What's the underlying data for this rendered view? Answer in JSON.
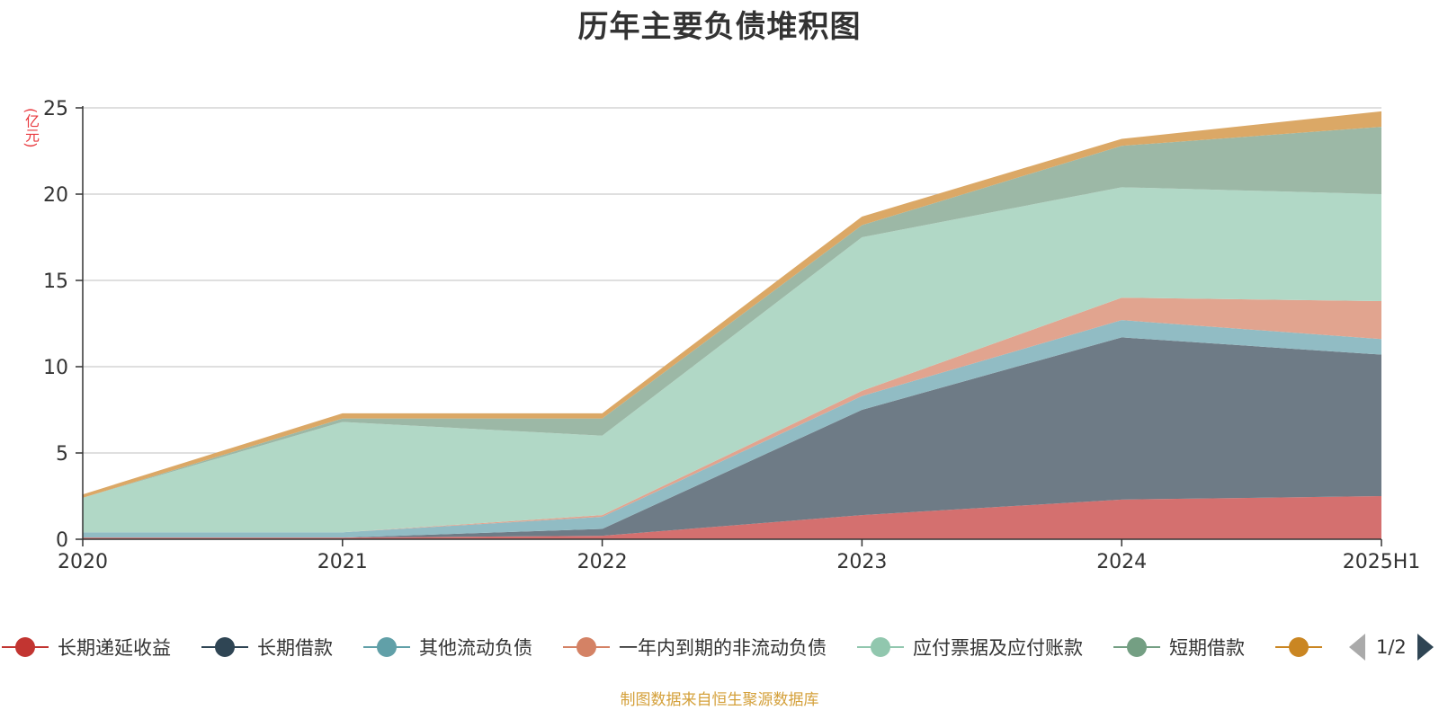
{
  "title": "历年主要负债堆积图",
  "unit_label": "(亿元)",
  "source_note": "制图数据来自恒生聚源数据库",
  "pager": {
    "text": "1/2",
    "prev_icon": "triangle-left-icon",
    "next_icon": "triangle-right-icon"
  },
  "chart_data": {
    "type": "area",
    "stacked": true,
    "title": "历年主要负债堆积图",
    "ylabel": "(亿元)",
    "categories": [
      "2020",
      "2021",
      "2022",
      "2023",
      "2024",
      "2025H1"
    ],
    "ylim": [
      0,
      25
    ],
    "yticks": [
      0,
      5,
      10,
      15,
      20,
      25
    ],
    "grid": true,
    "legend_position": "bottom",
    "series": [
      {
        "name": "长期递延收益",
        "color": "#c23531",
        "area_color": "#d4706f",
        "values": [
          0.1,
          0.1,
          0.2,
          1.4,
          2.3,
          2.5
        ]
      },
      {
        "name": "长期借款",
        "color": "#2f4554",
        "area_color": "#6e7b86",
        "values": [
          0.0,
          0.0,
          0.4,
          6.1,
          9.4,
          8.2
        ]
      },
      {
        "name": "其他流动负债",
        "color": "#61a0a8",
        "area_color": "#91bcc4",
        "values": [
          0.3,
          0.3,
          0.7,
          0.8,
          1.0,
          0.9
        ]
      },
      {
        "name": "一年内到期的非流动负债",
        "color": "#d48265",
        "area_color": "#e1a48f",
        "values": [
          0.0,
          0.0,
          0.1,
          0.3,
          1.3,
          2.2
        ]
      },
      {
        "name": "应付票据及应付账款",
        "color": "#91c7ae",
        "area_color": "#b1d8c6",
        "values": [
          2.0,
          6.4,
          4.6,
          8.9,
          6.4,
          6.2
        ]
      },
      {
        "name": "短期借款",
        "color": "#749f83",
        "area_color": "#9cb8a6",
        "values": [
          0.0,
          0.2,
          1.0,
          0.7,
          2.4,
          3.9
        ]
      },
      {
        "name": "",
        "color": "#ca8622",
        "area_color": "#dba866",
        "values": [
          0.2,
          0.3,
          0.3,
          0.5,
          0.4,
          0.9
        ]
      }
    ]
  }
}
